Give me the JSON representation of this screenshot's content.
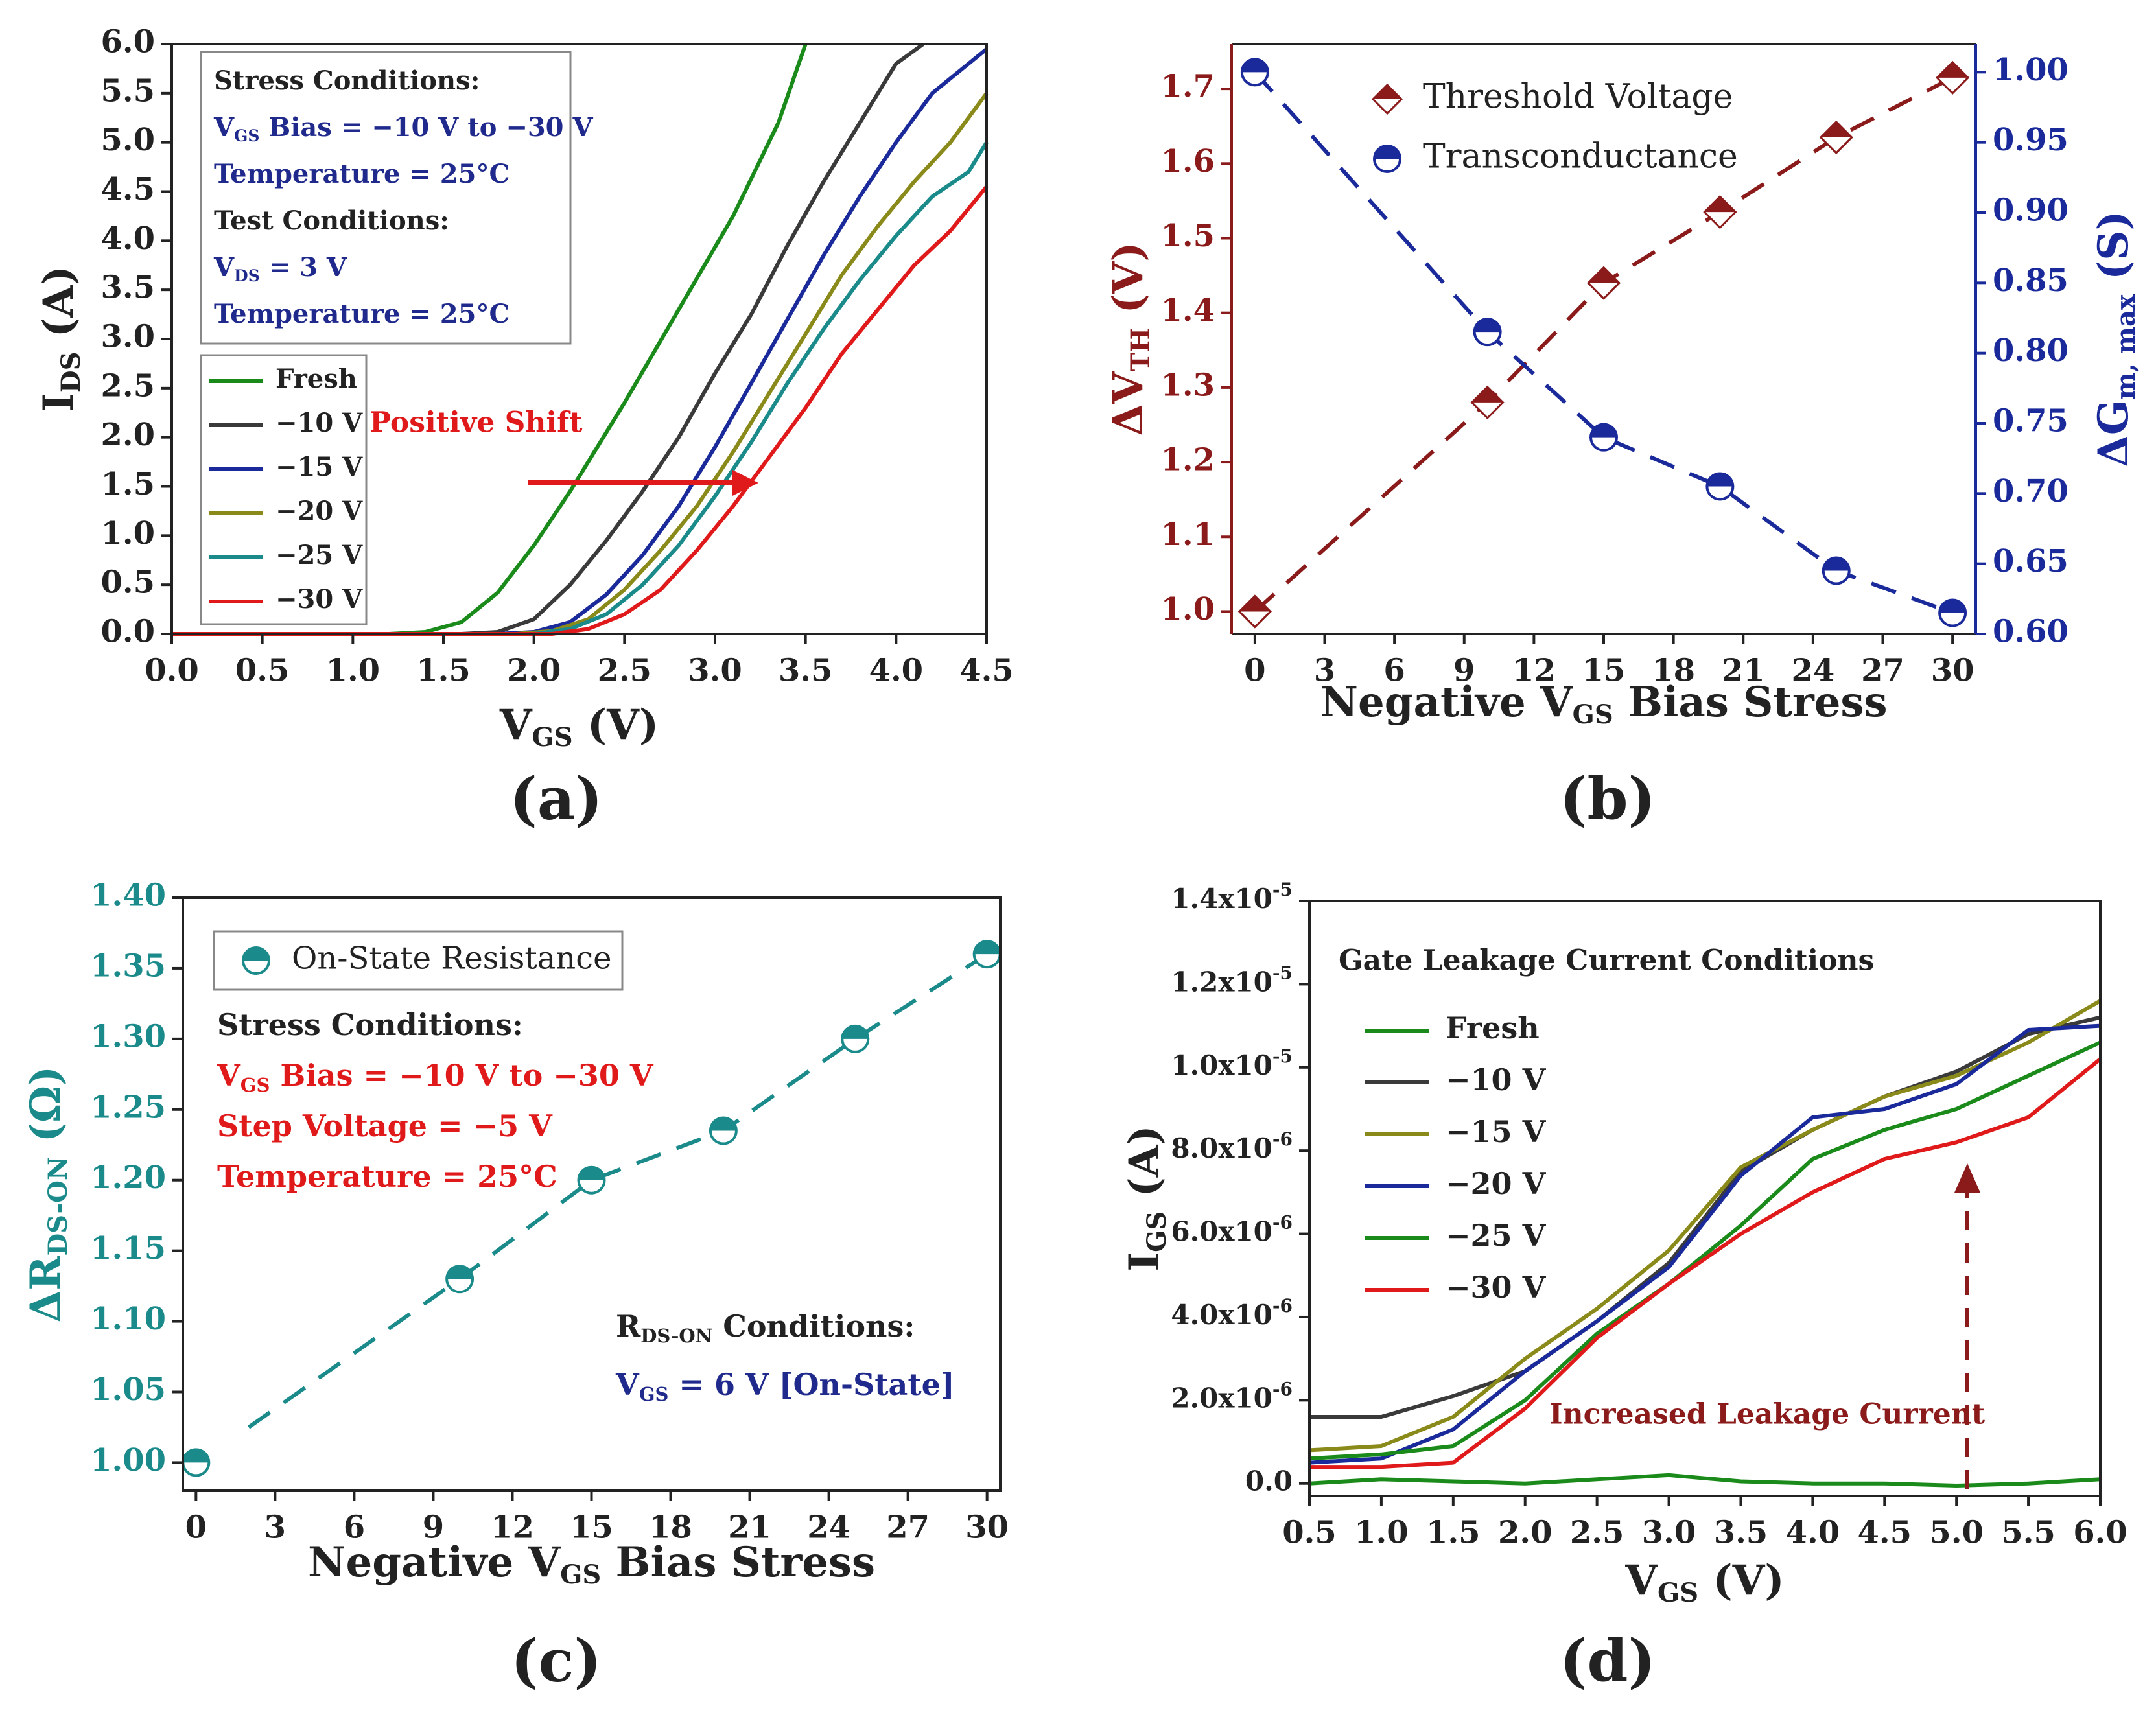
{
  "chart_data": [
    {
      "type": "line",
      "panel_label": "(a)",
      "ylabel_main": "I",
      "ylabel_sub": "DS",
      "ylabel_unit": " (A)",
      "xlabel_main": "V",
      "xlabel_sub": "GS",
      "xlabel_unit": " (V)",
      "xlim": [
        0,
        4.5
      ],
      "ylim": [
        0,
        6
      ],
      "xticks": [
        "0.0",
        "0.5",
        "1.0",
        "1.5",
        "2.0",
        "2.5",
        "3.0",
        "3.5",
        "4.0",
        "4.5"
      ],
      "yticks": [
        "0.0",
        "0.5",
        "1.0",
        "1.5",
        "2.0",
        "2.5",
        "3.0",
        "3.5",
        "4.0",
        "4.5",
        "5.0",
        "5.5",
        "6.0"
      ],
      "annotation": "Positive Shift",
      "conditions": [
        {
          "main": "Stress Conditions:",
          "color": "#222222"
        },
        {
          "main": "V",
          "sub": "GS",
          "rest": " Bias = −10 V to −30 V",
          "color": "#1f2a8c"
        },
        {
          "main": "Temperature = 25°C",
          "color": "#1f2a8c"
        },
        {
          "main": "Test Conditions:",
          "color": "#222222"
        },
        {
          "main": "V",
          "sub": "DS",
          "rest": " = 3 V",
          "color": "#1f2a8c"
        },
        {
          "main": "Temperature = 25°C",
          "color": "#1f2a8c"
        }
      ],
      "series": [
        {
          "name": "Fresh",
          "color": "#1a8a1a",
          "x": [
            0,
            1.2,
            1.4,
            1.6,
            1.8,
            2.0,
            2.2,
            2.5,
            2.8,
            3.1,
            3.35,
            3.5
          ],
          "y": [
            0,
            0,
            0.02,
            0.12,
            0.42,
            0.9,
            1.45,
            2.35,
            3.3,
            4.25,
            5.2,
            6.0
          ]
        },
        {
          "name": "−10 V",
          "color": "#3a3a3a",
          "x": [
            0,
            1.6,
            1.8,
            2.0,
            2.2,
            2.4,
            2.6,
            2.8,
            3.0,
            3.2,
            3.4,
            3.6,
            3.8,
            4.0,
            4.15
          ],
          "y": [
            0,
            0,
            0.02,
            0.15,
            0.5,
            0.95,
            1.45,
            2.0,
            2.65,
            3.25,
            3.95,
            4.6,
            5.2,
            5.8,
            6.0
          ]
        },
        {
          "name": "−15 V",
          "color": "#1a2a9a",
          "x": [
            0,
            1.8,
            2.0,
            2.2,
            2.4,
            2.6,
            2.8,
            3.0,
            3.2,
            3.4,
            3.6,
            3.8,
            4.0,
            4.2,
            4.5
          ],
          "y": [
            0,
            0,
            0.02,
            0.12,
            0.4,
            0.8,
            1.3,
            1.9,
            2.55,
            3.2,
            3.85,
            4.45,
            5.0,
            5.5,
            5.95
          ]
        },
        {
          "name": "−20 V",
          "color": "#8a8a1a",
          "x": [
            0,
            1.9,
            2.1,
            2.3,
            2.5,
            2.7,
            2.9,
            3.1,
            3.3,
            3.5,
            3.7,
            3.9,
            4.1,
            4.3,
            4.5
          ],
          "y": [
            0,
            0,
            0.03,
            0.15,
            0.45,
            0.85,
            1.3,
            1.85,
            2.45,
            3.05,
            3.65,
            4.15,
            4.6,
            5.0,
            5.5
          ]
        },
        {
          "name": "−25 V",
          "color": "#1a8a8a",
          "x": [
            0,
            2.0,
            2.2,
            2.4,
            2.6,
            2.8,
            3.0,
            3.2,
            3.4,
            3.6,
            3.8,
            4.0,
            4.2,
            4.4,
            4.5
          ],
          "y": [
            0,
            0,
            0.05,
            0.2,
            0.5,
            0.9,
            1.4,
            1.95,
            2.55,
            3.1,
            3.6,
            4.05,
            4.45,
            4.7,
            5.0
          ]
        },
        {
          "name": "−30 V",
          "color": "#e01a1a",
          "x": [
            0,
            2.1,
            2.3,
            2.5,
            2.7,
            2.9,
            3.1,
            3.3,
            3.5,
            3.7,
            3.9,
            4.1,
            4.3,
            4.5
          ],
          "y": [
            0,
            0,
            0.05,
            0.2,
            0.45,
            0.85,
            1.3,
            1.8,
            2.3,
            2.85,
            3.3,
            3.75,
            4.1,
            4.55
          ]
        }
      ]
    },
    {
      "type": "scatter",
      "panel_label": "(b)",
      "xlabel_main": "Negative V",
      "xlabel_sub": "GS",
      "xlabel_unit": " Bias Stress",
      "ylabel_left_main": "ΔV",
      "ylabel_left_sub": "TH",
      "ylabel_left_unit": " (V)",
      "ylabel_right_main": "ΔG",
      "ylabel_right_sub": "m, max",
      "ylabel_right_unit": " (S)",
      "xlim": [
        -1,
        31
      ],
      "ylim_left": [
        0.97,
        1.76
      ],
      "ylim_right": [
        0.6,
        1.02
      ],
      "xticks": [
        "0",
        "3",
        "6",
        "9",
        "12",
        "15",
        "18",
        "21",
        "24",
        "27",
        "30"
      ],
      "yticks_left": [
        "1.0",
        "1.1",
        "1.2",
        "1.3",
        "1.4",
        "1.5",
        "1.6",
        "1.7"
      ],
      "yticks_right": [
        "0.60",
        "0.65",
        "0.70",
        "0.75",
        "0.80",
        "0.85",
        "0.90",
        "0.95",
        "1.00"
      ],
      "series": [
        {
          "name": "Threshold Voltage",
          "color": "#8b1a1a",
          "axis": "left",
          "marker": "diamond",
          "x": [
            0,
            10,
            15,
            20,
            25,
            30
          ],
          "y": [
            1.0,
            1.28,
            1.44,
            1.535,
            1.635,
            1.715
          ]
        },
        {
          "name": "Transconductance",
          "color": "#1a2a9a",
          "axis": "right",
          "marker": "half-circle",
          "x": [
            0,
            10,
            15,
            20,
            25,
            30
          ],
          "y": [
            1.0,
            0.815,
            0.74,
            0.705,
            0.645,
            0.615
          ]
        }
      ]
    },
    {
      "type": "scatter",
      "panel_label": "(c)",
      "xlabel_main": "Negative V",
      "xlabel_sub": "GS",
      "xlabel_unit": " Bias Stress",
      "ylabel_main": "ΔR",
      "ylabel_sub": "DS-ON",
      "ylabel_unit": " (Ω)",
      "xlim": [
        -0.5,
        30.5
      ],
      "ylim": [
        0.98,
        1.4
      ],
      "xticks": [
        "0",
        "3",
        "6",
        "9",
        "12",
        "15",
        "18",
        "21",
        "24",
        "27",
        "30"
      ],
      "yticks": [
        "1.00",
        "1.05",
        "1.10",
        "1.15",
        "1.20",
        "1.25",
        "1.30",
        "1.35",
        "1.40"
      ],
      "conditions": [
        {
          "main": "Stress Conditions:",
          "color": "#222222"
        },
        {
          "main": "V",
          "sub": "GS",
          "rest": " Bias = −10 V to −30 V",
          "color": "#e01a1a"
        },
        {
          "main": "Step Voltage = −5 V",
          "color": "#e01a1a"
        },
        {
          "main": "Temperature = 25°C",
          "color": "#e01a1a"
        }
      ],
      "conditions2": [
        {
          "main": "R",
          "sub": "DS-ON",
          "rest": " Conditions:",
          "color": "#222222"
        },
        {
          "main": "V",
          "sub": "GS",
          "rest": " = 6 V [On-State]",
          "color": "#1f2a8c"
        }
      ],
      "series": [
        {
          "name": "On-State Resistance",
          "color": "#1a8a8a",
          "marker": "half-circle",
          "x": [
            0,
            10,
            15,
            20,
            25,
            30
          ],
          "y": [
            1.0,
            1.13,
            1.2,
            1.235,
            1.3,
            1.36
          ]
        }
      ]
    },
    {
      "type": "line",
      "panel_label": "(d)",
      "ylabel_main": "I",
      "ylabel_sub": "GS",
      "ylabel_unit": " (A)",
      "xlabel_main": "V",
      "xlabel_sub": "GS",
      "xlabel_unit": " (V)",
      "xlim": [
        0.5,
        6.0
      ],
      "ylim": [
        -3e-07,
        1.4e-05
      ],
      "xticks": [
        "0.5",
        "1.0",
        "1.5",
        "2.0",
        "2.5",
        "3.0",
        "3.5",
        "4.0",
        "4.5",
        "5.0",
        "5.5",
        "6.0"
      ],
      "yticks": [
        {
          "v": 0,
          "base": "0.0",
          "exp": ""
        },
        {
          "v": 2e-06,
          "base": "2.0x10",
          "exp": "-6"
        },
        {
          "v": 4e-06,
          "base": "4.0x10",
          "exp": "-6"
        },
        {
          "v": 6e-06,
          "base": "6.0x10",
          "exp": "-6"
        },
        {
          "v": 8e-06,
          "base": "8.0x10",
          "exp": "-6"
        },
        {
          "v": 1e-05,
          "base": "1.0x10",
          "exp": "-5"
        },
        {
          "v": 1.2e-05,
          "base": "1.2x10",
          "exp": "-5"
        },
        {
          "v": 1.4e-05,
          "base": "1.4x10",
          "exp": "-5"
        }
      ],
      "legend_title": "Gate Leakage Current Conditions",
      "annotation": "Increased Leakage Current",
      "series": [
        {
          "name": "Fresh",
          "color": "#1a8a1a",
          "x": [
            0.5,
            1.0,
            1.5,
            2.0,
            2.5,
            3.0,
            3.5,
            4.0,
            4.5,
            5.0,
            5.5,
            6.0
          ],
          "y": [
            0,
            1e-07,
            5e-08,
            0,
            1e-07,
            2e-07,
            5e-08,
            0,
            0,
            -5e-08,
            0,
            1e-07
          ]
        },
        {
          "name": "−10 V",
          "color": "#3a3a3a",
          "x": [
            0.5,
            1.0,
            1.5,
            2.0,
            2.5,
            3.0,
            3.5,
            4.0,
            4.5,
            5.0,
            5.5,
            6.0
          ],
          "y": [
            1.6e-06,
            1.6e-06,
            2.1e-06,
            2.7e-06,
            3.9e-06,
            5.3e-06,
            7.5e-06,
            8.5e-06,
            9.3e-06,
            9.9e-06,
            1.08e-05,
            1.12e-05
          ]
        },
        {
          "name": "−15 V",
          "color": "#8a8a1a",
          "x": [
            0.5,
            1.0,
            1.5,
            2.0,
            2.5,
            3.0,
            3.5,
            4.0,
            4.5,
            5.0,
            5.5,
            6.0
          ],
          "y": [
            8e-07,
            9e-07,
            1.6e-06,
            3e-06,
            4.2e-06,
            5.6e-06,
            7.6e-06,
            8.5e-06,
            9.3e-06,
            9.8e-06,
            1.06e-05,
            1.16e-05
          ]
        },
        {
          "name": "−20 V",
          "color": "#1a2a9a",
          "x": [
            0.5,
            1.0,
            1.5,
            2.0,
            2.5,
            3.0,
            3.5,
            4.0,
            4.5,
            5.0,
            5.5,
            6.0
          ],
          "y": [
            5e-07,
            6e-07,
            1.3e-06,
            2.7e-06,
            3.9e-06,
            5.2e-06,
            7.4e-06,
            8.8e-06,
            9e-06,
            9.6e-06,
            1.09e-05,
            1.1e-05
          ]
        },
        {
          "name": "−25 V",
          "color": "#1a8a1a",
          "x": [
            0.5,
            1.0,
            1.5,
            2.0,
            2.5,
            3.0,
            3.5,
            4.0,
            4.5,
            5.0,
            5.5,
            6.0
          ],
          "y": [
            6e-07,
            7e-07,
            9e-07,
            2e-06,
            3.6e-06,
            4.8e-06,
            6.2e-06,
            7.8e-06,
            8.5e-06,
            9e-06,
            9.8e-06,
            1.06e-05
          ]
        },
        {
          "name": "−30 V",
          "color": "#e01a1a",
          "x": [
            0.5,
            1.0,
            1.5,
            2.0,
            2.5,
            3.0,
            3.5,
            4.0,
            4.5,
            5.0,
            5.5,
            6.0
          ],
          "y": [
            4e-07,
            4e-07,
            5e-07,
            1.8e-06,
            3.5e-06,
            4.8e-06,
            6e-06,
            7e-06,
            7.8e-06,
            8.2e-06,
            8.8e-06,
            1.02e-05
          ]
        }
      ]
    }
  ]
}
